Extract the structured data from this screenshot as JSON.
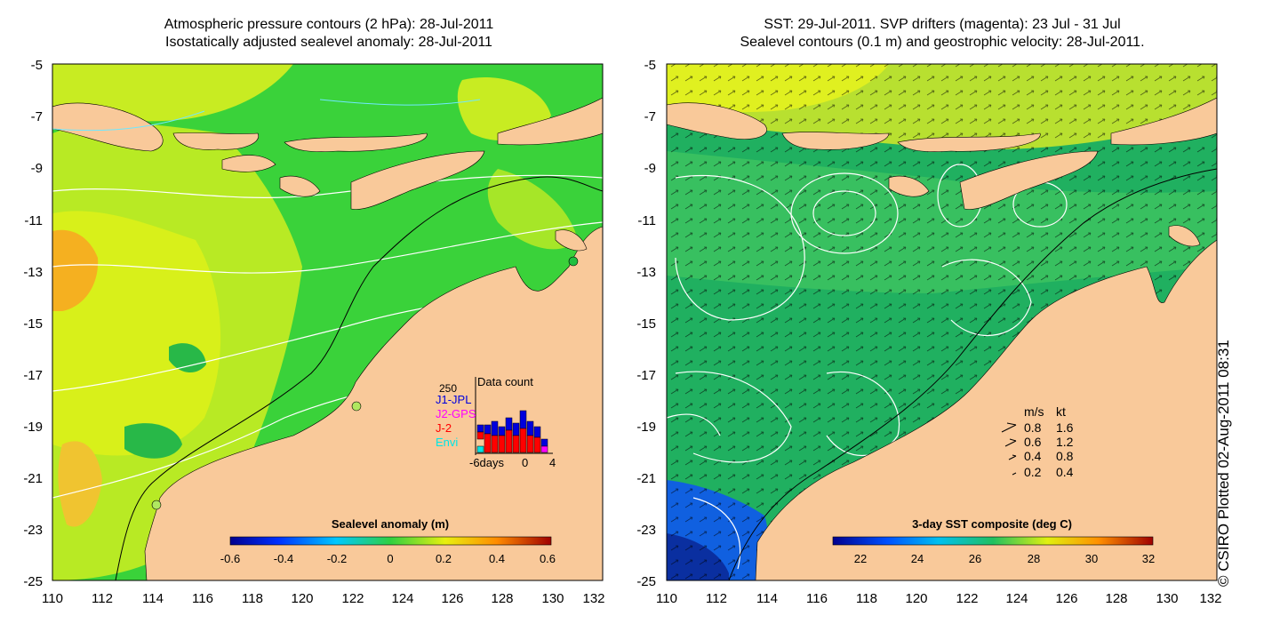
{
  "left_panel": {
    "title_line1": "Atmospheric pressure contours (2 hPa): 28-Jul-2011",
    "title_line2": "Isostatically adjusted sealevel anomaly: 28-Jul-2011",
    "colorbar": {
      "label": "Sealevel anomaly (m)",
      "ticks": [
        "-0.6",
        "-0.4",
        "-0.2",
        "0",
        "0.2",
        "0.4",
        "0.6"
      ]
    },
    "inset": {
      "title": "Data count",
      "max_label": "250",
      "legend": [
        {
          "label": "J1-JPL",
          "color": "#0000dd"
        },
        {
          "label": "J2-GPS",
          "color": "#ff00ff"
        },
        {
          "label": "J-2",
          "color": "#ff0000"
        },
        {
          "label": "Envi",
          "color": "#00e5e5"
        }
      ],
      "axis_left": "-6days",
      "axis_mid": "0",
      "axis_right": "4"
    }
  },
  "right_panel": {
    "title_line1": "SST: 29-Jul-2011. SVP drifters (magenta): 23 Jul - 31 Jul",
    "title_line2": "Sealevel contours (0.1 m) and geostrophic velocity: 28-Jul-2011.",
    "colorbar": {
      "label": "3-day SST composite (deg C)",
      "ticks": [
        "22",
        "24",
        "26",
        "28",
        "30",
        "32"
      ]
    },
    "velocity_key": {
      "header_ms": "m/s",
      "header_kt": "kt",
      "rows": [
        {
          "ms": "0.8",
          "kt": "1.6"
        },
        {
          "ms": "0.6",
          "kt": "1.2"
        },
        {
          "ms": "0.4",
          "kt": "0.8"
        },
        {
          "ms": "0.2",
          "kt": "0.4"
        }
      ]
    }
  },
  "axes": {
    "y_ticks": [
      "-5",
      "-7",
      "-9",
      "-11",
      "-13",
      "-15",
      "-17",
      "-19",
      "-21",
      "-23",
      "-25"
    ],
    "x_ticks": [
      "110",
      "112",
      "114",
      "116",
      "118",
      "120",
      "122",
      "124",
      "126",
      "128",
      "130",
      "132"
    ]
  },
  "credit": "© CSIRO Plotted 02-Aug-2011 08:31",
  "colors": {
    "land": "#f9c99a",
    "ocean_green": "#3ad23a",
    "anomaly_yellow": "#d8f01a",
    "anomaly_orange": "#f5b020",
    "sst_green": "#20b060",
    "sst_blue": "#0a3fc0",
    "sst_yellow": "#d0e820"
  }
}
